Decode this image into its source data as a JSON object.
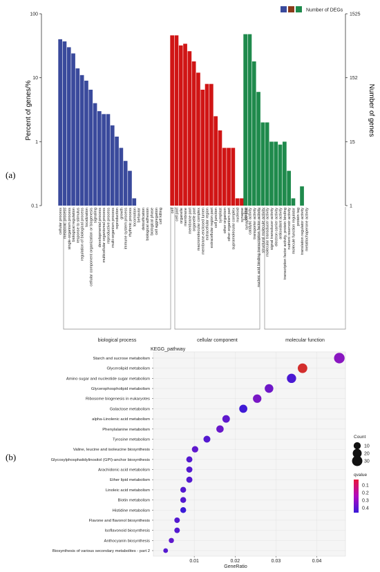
{
  "chart_data": [
    {
      "type": "bar",
      "panel_label": "(a)",
      "ylabel_left": "Percent of genes/%",
      "ylabel_right": "Number of genes",
      "yscale": "log",
      "ylim": [
        0.1,
        100
      ],
      "left_ticks": [
        "100",
        "10",
        "1",
        "0.1"
      ],
      "right_ticks": [
        "1525",
        "152",
        "15",
        "1"
      ],
      "legend_label": "Number of DEGs",
      "legend_position": "top-right",
      "colors": {
        "biological process": "#3a4a9c",
        "cellular component": "#d01515",
        "molecular function": "#1f8a4c"
      },
      "groups": [
        {
          "name": "biological process",
          "categories": [
            "cellular process",
            "metabolic process",
            "single-organism process",
            "biological regulation",
            "response to stimulus",
            "regulation of biological process",
            "localization",
            "cellular component organization or biogenesis",
            "signaling",
            "developmental process",
            "multicellular organismal process",
            "reproductive process",
            "multi-organism process",
            "reproduction",
            "growth",
            "immune system process",
            "rhythmic process",
            "locomotion",
            "behavior",
            "detoxification",
            "biological adhesion",
            "biological phase",
            "cell aggregation",
            "cell killing"
          ],
          "values": [
            40,
            37,
            30,
            24,
            14,
            11,
            9,
            6.5,
            4,
            3,
            2.7,
            2.7,
            1.8,
            1.2,
            0.8,
            0.5,
            0.35,
            0.13,
            0.1,
            0.1,
            0.1,
            0.1,
            0.1,
            0.1
          ]
        },
        {
          "name": "cellular component",
          "categories": [
            "cell",
            "cell part",
            "organelle",
            "membrane",
            "membrane part",
            "organelle part",
            "macromolecular complex",
            "membrane-enclosed lumen",
            "extracellular region",
            "extracellular region part",
            "cell junction",
            "symplast",
            "other organism",
            "other organism part",
            "supramolecular complex",
            "nucleoid",
            "synapse",
            "synapse part"
          ],
          "values": [
            46,
            46,
            32,
            34,
            26,
            18,
            12,
            6.5,
            8,
            8,
            2.5,
            1.5,
            0.8,
            0.8,
            0.8,
            0.13,
            0.13,
            0.1
          ]
        },
        {
          "name": "molecular function",
          "categories": [
            "binding",
            "catalytic activity",
            "transporter activity",
            "nucleic acid binding transcription factor activity",
            "structural molecule activity",
            "molecular transducer activity",
            "signal transducer activity",
            "electron carrier activity",
            "antioxidant activity",
            "transcription factor activity, protein binding",
            "nutrient reservoir activity",
            "molecule function regulator",
            "protein tag",
            "translation regulator activity",
            "metallochaperone activity"
          ],
          "values": [
            48,
            48,
            18,
            6,
            2,
            2,
            1,
            1,
            0.9,
            1,
            0.35,
            0.13,
            0.1,
            0.2,
            0.1
          ]
        }
      ]
    },
    {
      "type": "scatter",
      "panel_label": "(b)",
      "title": "KEGG_pathway",
      "xlabel": "GeneRatio",
      "xlim": [
        0.0,
        0.047
      ],
      "xticks": [
        "0.01",
        "0.02",
        "0.03",
        "0.04"
      ],
      "size_legend_title": "Count",
      "size_legend": [
        "10",
        "20",
        "30"
      ],
      "color_legend_title": "qvalue",
      "color_legend_ticks": [
        "0.1",
        "0.2",
        "0.3",
        "0.4"
      ],
      "pathways": [
        {
          "name": "Starch and sucrose metabolism",
          "gene_ratio": 0.0455,
          "count": 32,
          "qvalue": 0.3
        },
        {
          "name": "Glycerolipid metabolism",
          "gene_ratio": 0.0365,
          "count": 24,
          "qvalue": 0.02
        },
        {
          "name": "Amino sugar and nucleotide sugar metabolism",
          "gene_ratio": 0.0338,
          "count": 22,
          "qvalue": 0.42
        },
        {
          "name": "Glycerophospholipid metabolism",
          "gene_ratio": 0.0283,
          "count": 18,
          "qvalue": 0.35
        },
        {
          "name": "Ribosome biogenesis in eukaryotes",
          "gene_ratio": 0.0254,
          "count": 17,
          "qvalue": 0.33
        },
        {
          "name": "Galactose metabolism",
          "gene_ratio": 0.022,
          "count": 15,
          "qvalue": 0.44
        },
        {
          "name": "alpha-Linolenic acid metabolism",
          "gene_ratio": 0.0178,
          "count": 12,
          "qvalue": 0.38
        },
        {
          "name": "Phenylalanine metabolism",
          "gene_ratio": 0.0163,
          "count": 11,
          "qvalue": 0.36
        },
        {
          "name": "Tyrosine metabolism",
          "gene_ratio": 0.0131,
          "count": 9,
          "qvalue": 0.4
        },
        {
          "name": "Valine, leucine and isoleucine biosynthesis",
          "gene_ratio": 0.0102,
          "count": 7,
          "qvalue": 0.38
        },
        {
          "name": "Glycosylphosphatidylinositol (GPI)-anchor biosynthesis",
          "gene_ratio": 0.0088,
          "count": 6,
          "qvalue": 0.4
        },
        {
          "name": "Arachidonic acid metabolism",
          "gene_ratio": 0.0088,
          "count": 6,
          "qvalue": 0.4
        },
        {
          "name": "Ether lipid metabolism",
          "gene_ratio": 0.0088,
          "count": 6,
          "qvalue": 0.4
        },
        {
          "name": "Linoleic acid metabolism",
          "gene_ratio": 0.0073,
          "count": 5,
          "qvalue": 0.4
        },
        {
          "name": "Biotin metabolism",
          "gene_ratio": 0.0073,
          "count": 5,
          "qvalue": 0.4
        },
        {
          "name": "Histidine metabolism",
          "gene_ratio": 0.0073,
          "count": 5,
          "qvalue": 0.45
        },
        {
          "name": "Flavone and flavonol biosynthesis",
          "gene_ratio": 0.0058,
          "count": 4,
          "qvalue": 0.4
        },
        {
          "name": "Isoflavonoid biosynthesis",
          "gene_ratio": 0.0058,
          "count": 4,
          "qvalue": 0.4
        },
        {
          "name": "Anthocyanin biosynthesis",
          "gene_ratio": 0.0044,
          "count": 3,
          "qvalue": 0.38
        },
        {
          "name": "Biosynthesis of various secondary metabolites - part 2",
          "gene_ratio": 0.003,
          "count": 2,
          "qvalue": 0.4
        }
      ]
    }
  ]
}
